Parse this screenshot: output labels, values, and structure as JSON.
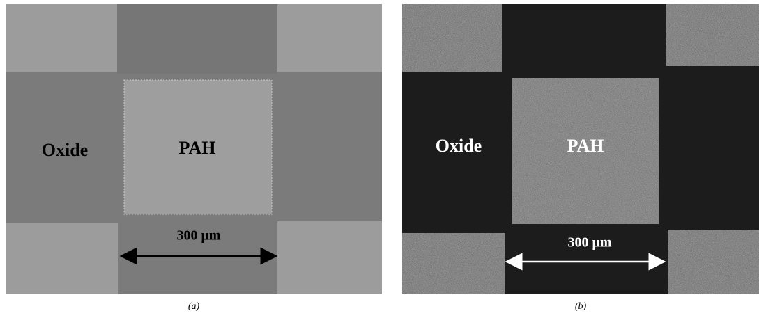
{
  "panels": [
    {
      "oxide_label": "Oxide",
      "pah_label": "PAH",
      "scale_label": "300 μm",
      "caption": "(a)"
    },
    {
      "oxide_label": "Oxide",
      "pah_label": "PAH",
      "scale_label": "300 μm",
      "caption": "(b)"
    }
  ]
}
